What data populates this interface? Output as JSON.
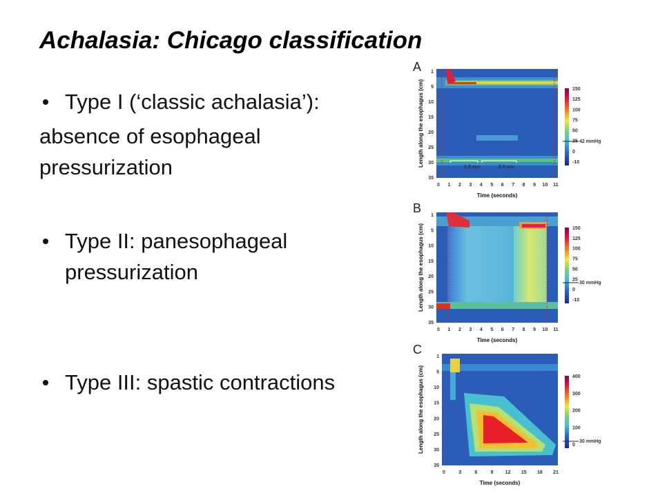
{
  "title": "Achalasia: Chicago classification",
  "items": [
    {
      "text": "Type I (‘classic achalasia’):",
      "continuation": [
        "absence of esophageal",
        "pressurization"
      ]
    },
    {
      "text": "Type II: panesophageal",
      "continuation": [
        "pressurization"
      ]
    },
    {
      "text": "Type III: spastic contractions",
      "continuation": []
    }
  ],
  "panels": [
    {
      "label": "A",
      "y_label": "Length along the esophagus (cm)",
      "x_label": "Time (seconds)",
      "y_ticks": [
        "1",
        "5",
        "10",
        "15",
        "20",
        "25",
        "30",
        "35"
      ],
      "x_ticks": [
        "0",
        "1",
        "2",
        "3",
        "4",
        "5",
        "6",
        "7",
        "8",
        "9",
        "10",
        "11"
      ],
      "colorbar_ticks": [
        "150",
        "125",
        "100",
        "75",
        "50",
        "25",
        "0",
        "-10"
      ],
      "threshold": "42 mmHg",
      "annotations": [
        "1.5 sec",
        "2.5 sec"
      ]
    },
    {
      "label": "B",
      "y_label": "Length along the esophagus (cm)",
      "x_label": "Time (seconds)",
      "y_ticks": [
        "1",
        "5",
        "10",
        "15",
        "20",
        "25",
        "30",
        "35"
      ],
      "x_ticks": [
        "0",
        "1",
        "2",
        "3",
        "4",
        "5",
        "6",
        "7",
        "8",
        "9",
        "10",
        "11"
      ],
      "colorbar_ticks": [
        "150",
        "125",
        "100",
        "75",
        "50",
        "25",
        "0",
        "-10"
      ],
      "threshold": "30 mmHg",
      "annotations": []
    },
    {
      "label": "C",
      "y_label": "Length along the esophagus (cm)",
      "x_label": "Time (seconds)",
      "y_ticks": [
        "1",
        "5",
        "10",
        "15",
        "20",
        "25",
        "30",
        "35"
      ],
      "x_ticks": [
        "0",
        "3",
        "6",
        "9",
        "12",
        "15",
        "18",
        "21"
      ],
      "colorbar_ticks": [
        "400",
        "300",
        "200",
        "100",
        "0"
      ],
      "threshold": "30 mmHg",
      "annotations": []
    }
  ]
}
